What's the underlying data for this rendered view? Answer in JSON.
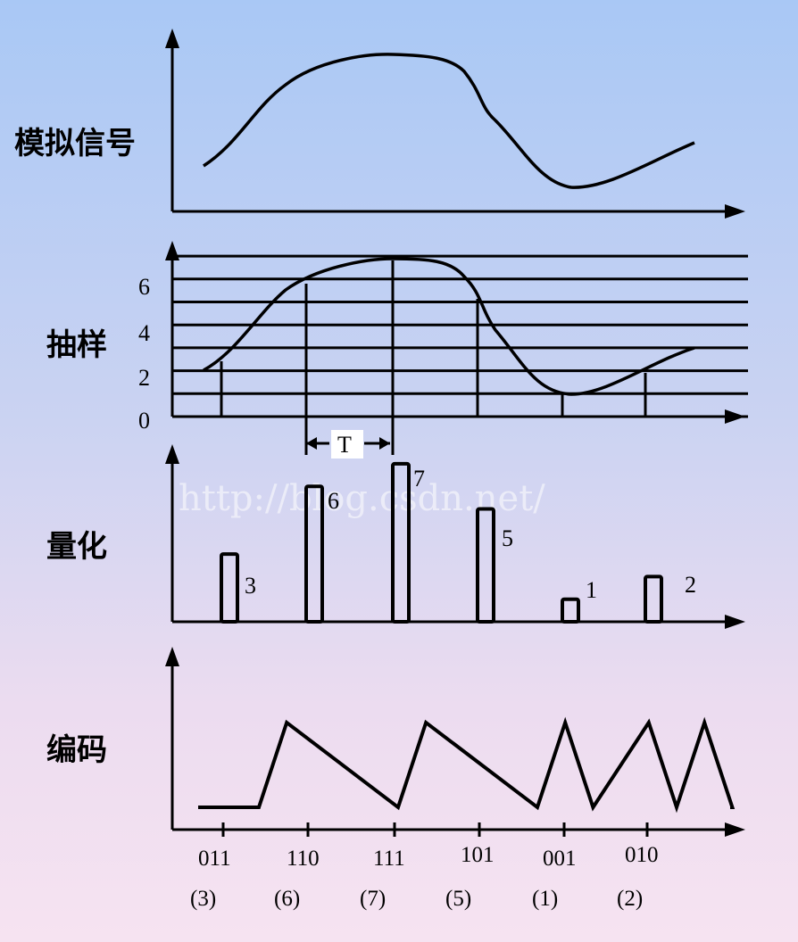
{
  "labels": {
    "analog": "模拟信号",
    "sampling": "抽样",
    "quantize": "量化",
    "encode": "编码"
  },
  "sampling_ticks": [
    "6",
    "4",
    "2",
    "0"
  ],
  "period_label": "T",
  "watermark": "http://blog.csdn.net/",
  "quantized_values": [
    "3",
    "6",
    "7",
    "5",
    "1",
    "2"
  ],
  "codes": [
    "011",
    "110",
    "111",
    "101",
    "001",
    "010"
  ],
  "code_values": [
    "(3)",
    "(6)",
    "(7)",
    "(5)",
    "(1)",
    "(2)"
  ],
  "chart_data": {
    "type": "line",
    "title": "",
    "levels": [
      0,
      1,
      2,
      3,
      4,
      5,
      6,
      7
    ],
    "samples": [
      3,
      6,
      7,
      5,
      1,
      2
    ],
    "bits": "011110111101001010"
  },
  "colors": {
    "line": "#000000",
    "background_top": "#a9c8f5",
    "background_bottom": "#f6e3f1"
  }
}
